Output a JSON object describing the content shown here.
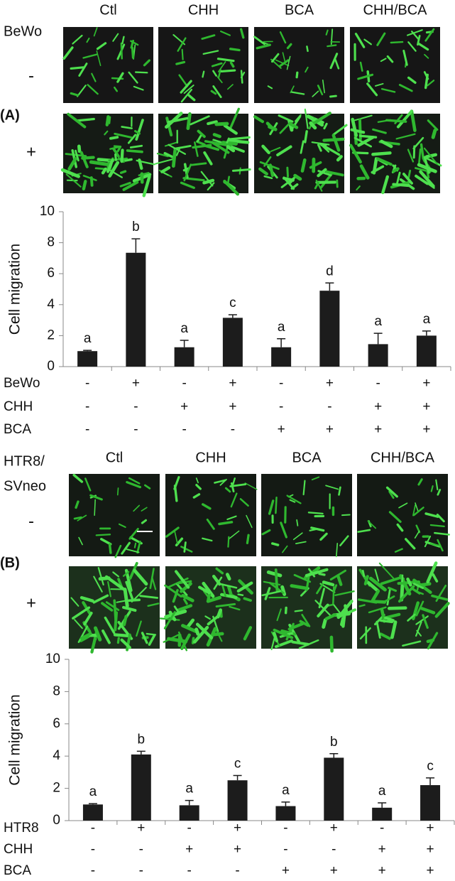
{
  "figure": {
    "panels": [
      {
        "label": "(A)",
        "columns": [
          "Ctl",
          "CHH",
          "BCA",
          "CHH/BCA"
        ],
        "row_title": [
          "BeWo"
        ],
        "rows": [
          "-",
          "+"
        ]
      },
      {
        "label": "(B)",
        "columns": [
          "Ctl",
          "CHH",
          "BCA",
          "CHH/BCA"
        ],
        "row_title": [
          "HTR8/",
          "SVneo"
        ],
        "rows": [
          "-",
          "+"
        ]
      }
    ]
  },
  "chart_data": [
    {
      "type": "bar",
      "y_label": "Cell migration",
      "ylim": [
        0,
        10
      ],
      "yticks": [
        0,
        2,
        4,
        6,
        8,
        10
      ],
      "color": "#1c1c1c",
      "values": [
        1.0,
        7.35,
        1.25,
        3.15,
        1.25,
        4.9,
        1.45,
        2.0
      ],
      "errors": [
        0.05,
        0.9,
        0.45,
        0.2,
        0.55,
        0.5,
        0.7,
        0.3
      ],
      "annotations": [
        "a",
        "b",
        "a",
        "c",
        "a",
        "d",
        "a",
        "a"
      ],
      "treatments": [
        {
          "name": "BeWo",
          "values": [
            "-",
            "+",
            "-",
            "+",
            "-",
            "+",
            "-",
            "+"
          ]
        },
        {
          "name": "CHH",
          "values": [
            "-",
            "-",
            "+",
            "+",
            "-",
            "-",
            "+",
            "+"
          ]
        },
        {
          "name": "BCA",
          "values": [
            "-",
            "-",
            "-",
            "-",
            "+",
            "+",
            "+",
            "+"
          ]
        }
      ]
    },
    {
      "type": "bar",
      "y_label": "Cell migration",
      "ylim": [
        0,
        10
      ],
      "yticks": [
        0,
        2,
        4,
        6,
        8,
        10
      ],
      "color": "#1c1c1c",
      "values": [
        1.0,
        4.1,
        0.95,
        2.5,
        0.9,
        3.9,
        0.8,
        2.2
      ],
      "errors": [
        0.05,
        0.2,
        0.3,
        0.3,
        0.25,
        0.25,
        0.3,
        0.45
      ],
      "annotations": [
        "a",
        "b",
        "a",
        "c",
        "a",
        "b",
        "a",
        "c"
      ],
      "treatments": [
        {
          "name": "HTR8",
          "values": [
            "-",
            "+",
            "-",
            "+",
            "-",
            "+",
            "-",
            "+"
          ]
        },
        {
          "name": "CHH",
          "values": [
            "-",
            "-",
            "+",
            "+",
            "-",
            "-",
            "+",
            "+"
          ]
        },
        {
          "name": "BCA",
          "values": [
            "-",
            "-",
            "-",
            "-",
            "+",
            "+",
            "+",
            "+"
          ]
        }
      ]
    }
  ]
}
